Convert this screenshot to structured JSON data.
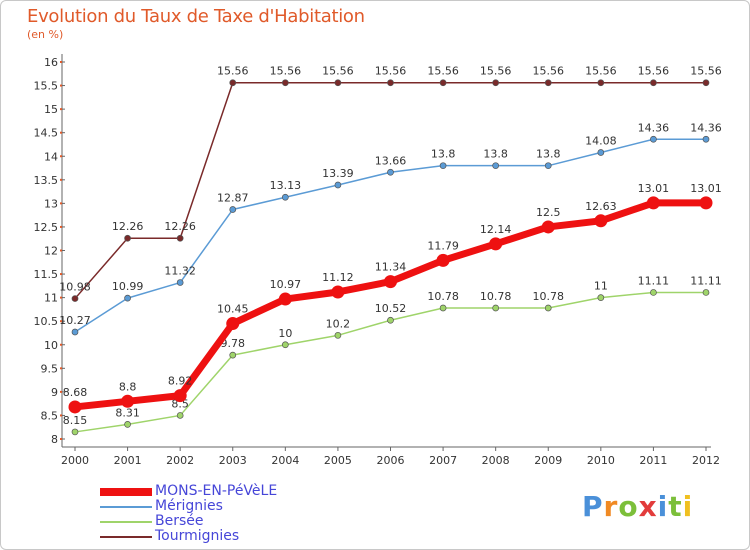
{
  "header": {
    "title": "Evolution du Taux de Taxe d'Habitation",
    "subtitle": "(en %)"
  },
  "logo": {
    "letters": [
      "P",
      "r",
      "o",
      "x",
      "i",
      "t",
      "i"
    ],
    "colors": [
      "#4a90d9",
      "#f08a24",
      "#7cbf3a",
      "#e23c3c",
      "#4a90d9",
      "#7cbf3a",
      "#f0c020"
    ]
  },
  "chart_data": {
    "type": "line",
    "x": [
      "2000",
      "2001",
      "2002",
      "2003",
      "2004",
      "2005",
      "2006",
      "2007",
      "2008",
      "2009",
      "2010",
      "2011",
      "2012"
    ],
    "ylim": [
      8,
      16
    ],
    "yticks": [
      "8",
      "8.5",
      "9",
      "9.5",
      "10",
      "10.5",
      "11",
      "11.5",
      "12",
      "12.5",
      "13",
      "13.5",
      "14",
      "14.5",
      "15",
      "15.5",
      "16"
    ],
    "grid": false,
    "legend_position": "bottom-left",
    "series": [
      {
        "name": "Tourmignies",
        "color": "#7a2a2a",
        "values": [
          10.98,
          12.26,
          12.26,
          15.56,
          15.56,
          15.56,
          15.56,
          15.56,
          15.56,
          15.56,
          15.56,
          15.56,
          15.56
        ],
        "labels": [
          "10.98",
          "12.26",
          "12.26",
          "15.56",
          "15.56",
          "15.56",
          "15.56",
          "15.56",
          "15.56",
          "15.56",
          "15.56",
          "15.56",
          "15.56"
        ]
      },
      {
        "name": "Mérignies",
        "color": "#5b9bd5",
        "values": [
          10.27,
          10.99,
          11.32,
          12.87,
          13.13,
          13.39,
          13.66,
          13.8,
          13.8,
          13.8,
          14.08,
          14.36,
          14.36
        ],
        "labels": [
          "10.27",
          "10.99",
          "11.32",
          "12.87",
          "13.13",
          "13.39",
          "13.66",
          "13.8",
          "13.8",
          "13.8",
          "14.08",
          "14.36",
          "14.36"
        ]
      },
      {
        "name": "Bersée",
        "color": "#9fd46a",
        "values": [
          8.15,
          8.31,
          8.5,
          9.78,
          10,
          10.2,
          10.52,
          10.78,
          10.78,
          10.78,
          11,
          11.11,
          11.11
        ],
        "labels": [
          "8.15",
          "8.31",
          "8.5",
          "9.78",
          "10",
          "10.2",
          "10.52",
          "10.78",
          "10.78",
          "10.78",
          "11",
          "11.11",
          "11.11"
        ]
      },
      {
        "name": "MONS-EN-PéVèLE",
        "color": "#ee1111",
        "values": [
          8.68,
          8.8,
          8.92,
          10.45,
          10.97,
          11.12,
          11.34,
          11.79,
          12.14,
          12.5,
          12.63,
          13.01,
          13.01
        ],
        "labels": [
          "8.68",
          "8.8",
          "8.92",
          "10.45",
          "10.97",
          "11.12",
          "11.34",
          "11.79",
          "12.14",
          "12.5",
          "12.63",
          "13.01",
          "13.01"
        ]
      }
    ]
  },
  "legend": {
    "items": [
      {
        "label": "MONS-EN-PéVèLE",
        "color": "#ee1111",
        "thick": true
      },
      {
        "label": "Mérignies",
        "color": "#5b9bd5",
        "thick": false
      },
      {
        "label": "Bersée",
        "color": "#9fd46a",
        "thick": false
      },
      {
        "label": "Tourmignies",
        "color": "#7a2a2a",
        "thick": false
      }
    ]
  }
}
